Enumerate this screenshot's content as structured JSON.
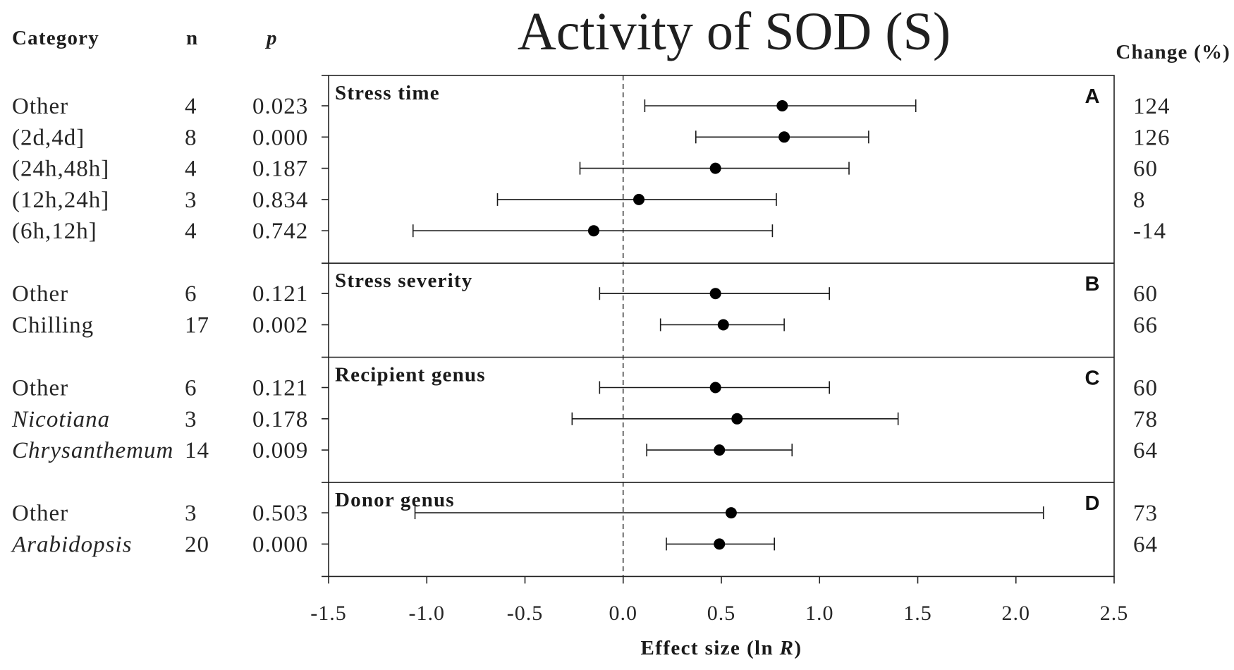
{
  "chart_data": {
    "type": "scatter",
    "title": "Activity of SOD (S)",
    "table_headers": {
      "category": "Category",
      "n": "n",
      "p": "p",
      "change": "Change (%)"
    },
    "xlabel": {
      "text": "Effect size (ln ",
      "italic": "R",
      "close": ")"
    },
    "xlim": [
      -1.5,
      2.5
    ],
    "xticks": [
      -1.5,
      -1.0,
      -0.5,
      0.0,
      0.5,
      1.0,
      1.5,
      2.0,
      2.5
    ],
    "xtick_labels": [
      "-1.5",
      "-1.0",
      "-0.5",
      "0.0",
      "0.5",
      "1.0",
      "1.5",
      "2.0",
      "2.5"
    ],
    "reference_line_x": 0,
    "grid": false,
    "panels": [
      {
        "letter": "A",
        "title": "Stress time",
        "rows": [
          {
            "category": "Other",
            "scientific_name": false,
            "n": "4",
            "p": "0.023",
            "mean": 0.81,
            "ci_lower": 0.11,
            "ci_upper": 1.49,
            "change": "124"
          },
          {
            "category": "(2d,4d]",
            "scientific_name": false,
            "n": "8",
            "p": "0.000",
            "mean": 0.82,
            "ci_lower": 0.37,
            "ci_upper": 1.25,
            "change": "126"
          },
          {
            "category": "(24h,48h]",
            "scientific_name": false,
            "n": "4",
            "p": "0.187",
            "mean": 0.47,
            "ci_lower": -0.22,
            "ci_upper": 1.15,
            "change": "60"
          },
          {
            "category": "(12h,24h]",
            "scientific_name": false,
            "n": "3",
            "p": "0.834",
            "mean": 0.08,
            "ci_lower": -0.64,
            "ci_upper": 0.78,
            "change": "8"
          },
          {
            "category": "(6h,12h]",
            "scientific_name": false,
            "n": "4",
            "p": "0.742",
            "mean": -0.15,
            "ci_lower": -1.07,
            "ci_upper": 0.76,
            "change": "-14"
          }
        ]
      },
      {
        "letter": "B",
        "title": "Stress severity",
        "rows": [
          {
            "category": "Other",
            "scientific_name": false,
            "n": "6",
            "p": "0.121",
            "mean": 0.47,
            "ci_lower": -0.12,
            "ci_upper": 1.05,
            "change": "60"
          },
          {
            "category": "Chilling",
            "scientific_name": false,
            "n": "17",
            "p": "0.002",
            "mean": 0.51,
            "ci_lower": 0.19,
            "ci_upper": 0.82,
            "change": "66"
          }
        ]
      },
      {
        "letter": "C",
        "title": "Recipient genus",
        "rows": [
          {
            "category": "Other",
            "scientific_name": false,
            "n": "6",
            "p": "0.121",
            "mean": 0.47,
            "ci_lower": -0.12,
            "ci_upper": 1.05,
            "change": "60"
          },
          {
            "category": "Nicotiana",
            "scientific_name": true,
            "n": "3",
            "p": "0.178",
            "mean": 0.58,
            "ci_lower": -0.26,
            "ci_upper": 1.4,
            "change": "78"
          },
          {
            "category": "Chrysanthemum",
            "scientific_name": true,
            "n": "14",
            "p": "0.009",
            "mean": 0.49,
            "ci_lower": 0.12,
            "ci_upper": 0.86,
            "change": "64"
          }
        ]
      },
      {
        "letter": "D",
        "title": "Donor genus",
        "rows": [
          {
            "category": "Other",
            "scientific_name": false,
            "n": "3",
            "p": "0.503",
            "mean": 0.55,
            "ci_lower": -1.06,
            "ci_upper": 2.14,
            "change": "73"
          },
          {
            "category": "Arabidopsis",
            "scientific_name": true,
            "n": "20",
            "p": "0.000",
            "mean": 0.49,
            "ci_lower": 0.22,
            "ci_upper": 0.77,
            "change": "64"
          }
        ]
      }
    ]
  },
  "colors": {
    "background": "#ffffff",
    "marks": "#000000",
    "whiskers": "#1a1a1a",
    "frame": "#222222",
    "reference_line": "#6e6e6e"
  }
}
